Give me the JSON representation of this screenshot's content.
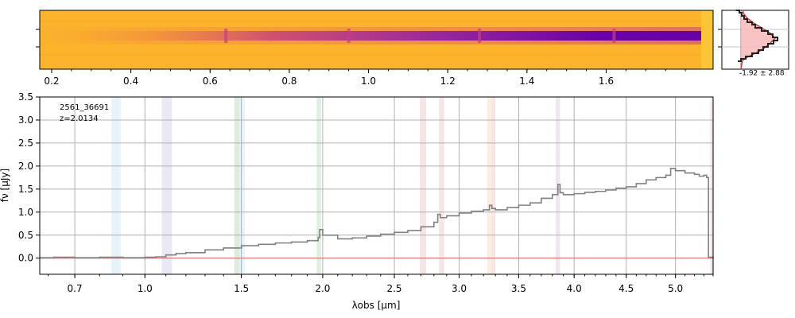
{
  "chart_data": [
    {
      "type": "heatmap",
      "panel": "2d-spectrum",
      "colormap": "plasma",
      "top_ticks": [
        "0.2",
        "0.4",
        "0.6",
        "0.8",
        "1.0",
        "1.2",
        "1.4",
        "1.6"
      ],
      "emission_knots_um": [
        0.64,
        0.95,
        1.28,
        1.62
      ]
    },
    {
      "type": "area",
      "panel": "profile",
      "label": "-1.92 ± 2.88"
    },
    {
      "type": "line",
      "panel": "1d-spectrum",
      "annotation": [
        "2561_36691",
        "z=2.0134"
      ],
      "xlabel": "λobs [μm]",
      "ylabel": "fν [μJy]",
      "xlim": [
        0.57,
        5.4
      ],
      "ylim": [
        -0.35,
        3.5
      ],
      "scale": "sqrt",
      "grid": true,
      "x_ticks": [
        "0.7",
        "1.0",
        "1.5",
        "2.0",
        "2.5",
        "3.0",
        "3.5",
        "4.0",
        "4.5",
        "5.0"
      ],
      "y_ticks": [
        "0.0",
        "0.5",
        "1.0",
        "1.5",
        "2.0",
        "2.5",
        "3.0",
        "3.5"
      ],
      "series": [
        {
          "color": "#808080",
          "x": [
            0.57,
            0.62,
            0.7,
            0.8,
            0.9,
            1.0,
            1.05,
            1.1,
            1.15,
            1.2,
            1.3,
            1.4,
            1.5,
            1.6,
            1.7,
            1.8,
            1.9,
            1.97,
            1.98,
            2.0,
            2.1,
            2.2,
            2.3,
            2.4,
            2.5,
            2.6,
            2.7,
            2.8,
            2.83,
            2.85,
            2.9,
            3.0,
            3.1,
            3.2,
            3.25,
            3.27,
            3.3,
            3.4,
            3.5,
            3.6,
            3.7,
            3.8,
            3.85,
            3.87,
            3.9,
            4.0,
            4.1,
            4.2,
            4.3,
            4.4,
            4.5,
            4.6,
            4.7,
            4.8,
            4.9,
            4.95,
            5.0,
            5.1,
            5.2,
            5.25,
            5.3,
            5.33,
            5.35,
            5.4
          ],
          "y": [
            0.01,
            0.02,
            0.01,
            0.02,
            0.01,
            0.02,
            0.03,
            0.07,
            0.1,
            0.12,
            0.18,
            0.22,
            0.27,
            0.3,
            0.33,
            0.35,
            0.38,
            0.45,
            0.62,
            0.5,
            0.42,
            0.44,
            0.48,
            0.52,
            0.56,
            0.6,
            0.68,
            0.78,
            0.95,
            0.88,
            0.92,
            0.98,
            1.02,
            1.05,
            1.15,
            1.08,
            1.05,
            1.1,
            1.15,
            1.2,
            1.3,
            1.38,
            1.6,
            1.42,
            1.38,
            1.4,
            1.43,
            1.45,
            1.48,
            1.52,
            1.55,
            1.62,
            1.7,
            1.75,
            1.8,
            1.95,
            1.9,
            1.85,
            1.82,
            1.78,
            1.8,
            1.75,
            0.02,
            0.0
          ]
        },
        {
          "color": "#e07070",
          "x": [
            0.57,
            5.4
          ],
          "y": [
            0.0,
            0.0
          ]
        }
      ],
      "bands_um": [
        {
          "x0": 0.85,
          "x1": 0.89,
          "color": "#aad4ee"
        },
        {
          "x0": 1.08,
          "x1": 1.13,
          "color": "#b0b0e0"
        },
        {
          "x0": 1.46,
          "x1": 1.49,
          "color": "#88bb88"
        },
        {
          "x0": 1.49,
          "x1": 1.52,
          "color": "#aad4ee"
        },
        {
          "x0": 1.96,
          "x1": 1.99,
          "color": "#88cc88"
        },
        {
          "x0": 2.69,
          "x1": 2.74,
          "color": "#e0a0a0"
        },
        {
          "x0": 2.84,
          "x1": 2.88,
          "color": "#e0a0a0"
        },
        {
          "x0": 3.23,
          "x1": 3.27,
          "color": "#f0c090"
        },
        {
          "x0": 3.27,
          "x1": 3.3,
          "color": "#e0a0a0"
        },
        {
          "x0": 3.83,
          "x1": 3.87,
          "color": "#d0a0d0"
        },
        {
          "x0": 5.37,
          "x1": 5.4,
          "color": "#e0a0a0"
        }
      ]
    }
  ]
}
